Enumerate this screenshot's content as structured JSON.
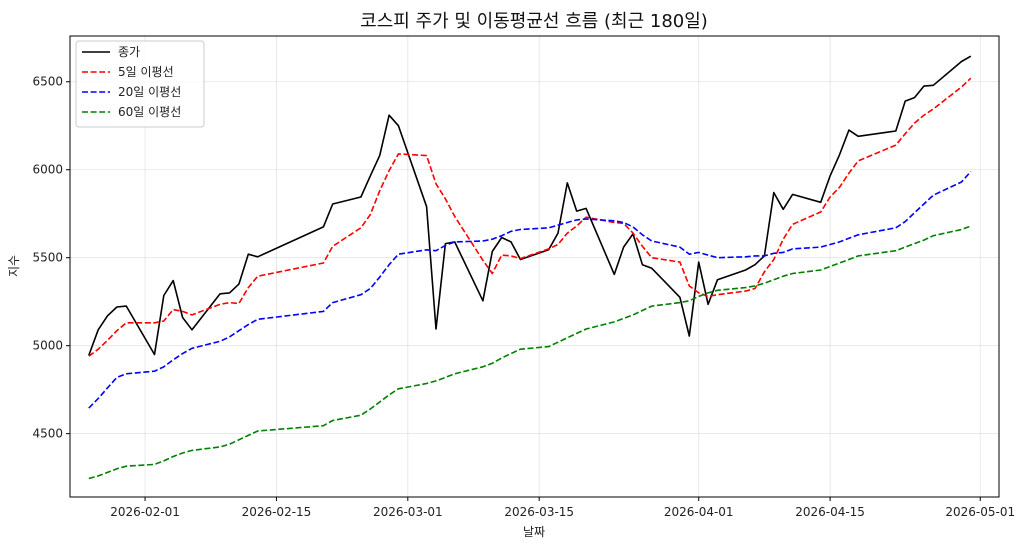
{
  "chart_data": {
    "type": "line",
    "title": "코스피 주가 및 이동평균선 흐름 (최근 180일)",
    "xlabel": "날짜",
    "ylabel": "지수",
    "xlim": [
      "2026-01-24",
      "2026-05-03"
    ],
    "ylim": [
      4140,
      6760
    ],
    "x_ticks": [
      "2026-02-01",
      "2026-02-15",
      "2026-03-01",
      "2026-03-15",
      "2026-04-01",
      "2026-04-15",
      "2026-05-01"
    ],
    "y_ticks": [
      4500,
      5000,
      5500,
      6000,
      6500
    ],
    "grid": true,
    "legend_position": "top-left",
    "series": [
      {
        "name": "종가",
        "color": "#000000",
        "dash": "solid",
        "points": [
          [
            "2026-01-26",
            4945
          ],
          [
            "2026-01-27",
            5090
          ],
          [
            "2026-01-28",
            5170
          ],
          [
            "2026-01-29",
            5220
          ],
          [
            "2026-01-30",
            5225
          ],
          [
            "2026-02-02",
            4950
          ],
          [
            "2026-02-03",
            5285
          ],
          [
            "2026-02-04",
            5370
          ],
          [
            "2026-02-05",
            5160
          ],
          [
            "2026-02-06",
            5090
          ],
          [
            "2026-02-09",
            5295
          ],
          [
            "2026-02-10",
            5300
          ],
          [
            "2026-02-11",
            5350
          ],
          [
            "2026-02-12",
            5520
          ],
          [
            "2026-02-13",
            5505
          ],
          [
            "2026-02-20",
            5675
          ],
          [
            "2026-02-21",
            5805
          ],
          [
            "2026-02-24",
            5845
          ],
          [
            "2026-02-25",
            5965
          ],
          [
            "2026-02-26",
            6080
          ],
          [
            "2026-02-27",
            6310
          ],
          [
            "2026-02-28",
            6250
          ],
          [
            "2026-03-03",
            5790
          ],
          [
            "2026-03-04",
            5095
          ],
          [
            "2026-03-05",
            5580
          ],
          [
            "2026-03-06",
            5590
          ],
          [
            "2026-03-09",
            5255
          ],
          [
            "2026-03-10",
            5535
          ],
          [
            "2026-03-11",
            5615
          ],
          [
            "2026-03-12",
            5590
          ],
          [
            "2026-03-13",
            5490
          ],
          [
            "2026-03-16",
            5545
          ],
          [
            "2026-03-17",
            5640
          ],
          [
            "2026-03-18",
            5925
          ],
          [
            "2026-03-19",
            5765
          ],
          [
            "2026-03-20",
            5780
          ],
          [
            "2026-03-23",
            5405
          ],
          [
            "2026-03-24",
            5560
          ],
          [
            "2026-03-25",
            5635
          ],
          [
            "2026-03-26",
            5460
          ],
          [
            "2026-03-27",
            5440
          ],
          [
            "2026-03-30",
            5275
          ],
          [
            "2026-03-31",
            5055
          ],
          [
            "2026-04-01",
            5475
          ],
          [
            "2026-04-02",
            5235
          ],
          [
            "2026-04-03",
            5375
          ],
          [
            "2026-04-06",
            5430
          ],
          [
            "2026-04-07",
            5460
          ],
          [
            "2026-04-08",
            5510
          ],
          [
            "2026-04-09",
            5870
          ],
          [
            "2026-04-10",
            5775
          ],
          [
            "2026-04-11",
            5860
          ],
          [
            "2026-04-14",
            5815
          ],
          [
            "2026-04-15",
            5965
          ],
          [
            "2026-04-16",
            6085
          ],
          [
            "2026-04-17",
            6225
          ],
          [
            "2026-04-18",
            6190
          ],
          [
            "2026-04-22",
            6220
          ],
          [
            "2026-04-23",
            6390
          ],
          [
            "2026-04-24",
            6410
          ],
          [
            "2026-04-25",
            6475
          ],
          [
            "2026-04-26",
            6480
          ],
          [
            "2026-04-29",
            6615
          ],
          [
            "2026-04-30",
            6645
          ]
        ]
      },
      {
        "name": "5일 이평선",
        "color": "#ff0000",
        "dash": "dashed",
        "points": [
          [
            "2026-01-26",
            4940
          ],
          [
            "2026-01-27",
            4980
          ],
          [
            "2026-01-28",
            5030
          ],
          [
            "2026-01-29",
            5085
          ],
          [
            "2026-01-30",
            5130
          ],
          [
            "2026-02-02",
            5130
          ],
          [
            "2026-02-03",
            5140
          ],
          [
            "2026-02-04",
            5205
          ],
          [
            "2026-02-05",
            5195
          ],
          [
            "2026-02-06",
            5175
          ],
          [
            "2026-02-09",
            5235
          ],
          [
            "2026-02-10",
            5245
          ],
          [
            "2026-02-11",
            5240
          ],
          [
            "2026-02-12",
            5330
          ],
          [
            "2026-02-13",
            5395
          ],
          [
            "2026-02-20",
            5470
          ],
          [
            "2026-02-21",
            5565
          ],
          [
            "2026-02-24",
            5670
          ],
          [
            "2026-02-25",
            5745
          ],
          [
            "2026-02-26",
            5880
          ],
          [
            "2026-02-27",
            5995
          ],
          [
            "2026-02-28",
            6090
          ],
          [
            "2026-03-03",
            6080
          ],
          [
            "2026-03-04",
            5920
          ],
          [
            "2026-03-05",
            5835
          ],
          [
            "2026-03-06",
            5735
          ],
          [
            "2026-03-09",
            5485
          ],
          [
            "2026-03-10",
            5410
          ],
          [
            "2026-03-11",
            5515
          ],
          [
            "2026-03-12",
            5510
          ],
          [
            "2026-03-13",
            5495
          ],
          [
            "2026-03-16",
            5550
          ],
          [
            "2026-03-17",
            5575
          ],
          [
            "2026-03-18",
            5640
          ],
          [
            "2026-03-19",
            5680
          ],
          [
            "2026-03-20",
            5730
          ],
          [
            "2026-03-23",
            5700
          ],
          [
            "2026-03-24",
            5695
          ],
          [
            "2026-03-25",
            5640
          ],
          [
            "2026-03-26",
            5565
          ],
          [
            "2026-03-27",
            5500
          ],
          [
            "2026-03-30",
            5475
          ],
          [
            "2026-03-31",
            5340
          ],
          [
            "2026-04-01",
            5300
          ],
          [
            "2026-04-02",
            5280
          ],
          [
            "2026-04-03",
            5290
          ],
          [
            "2026-04-06",
            5310
          ],
          [
            "2026-04-07",
            5325
          ],
          [
            "2026-04-08",
            5420
          ],
          [
            "2026-04-09",
            5490
          ],
          [
            "2026-04-10",
            5605
          ],
          [
            "2026-04-11",
            5690
          ],
          [
            "2026-04-14",
            5760
          ],
          [
            "2026-04-15",
            5845
          ],
          [
            "2026-04-16",
            5900
          ],
          [
            "2026-04-17",
            5980
          ],
          [
            "2026-04-18",
            6050
          ],
          [
            "2026-04-22",
            6140
          ],
          [
            "2026-04-23",
            6205
          ],
          [
            "2026-04-24",
            6265
          ],
          [
            "2026-04-25",
            6310
          ],
          [
            "2026-04-26",
            6345
          ],
          [
            "2026-04-29",
            6470
          ],
          [
            "2026-04-30",
            6520
          ]
        ]
      },
      {
        "name": "20일 이평선",
        "color": "#0000ff",
        "dash": "dashed",
        "points": [
          [
            "2026-01-26",
            4645
          ],
          [
            "2026-01-27",
            4700
          ],
          [
            "2026-01-28",
            4760
          ],
          [
            "2026-01-29",
            4820
          ],
          [
            "2026-01-30",
            4840
          ],
          [
            "2026-02-02",
            4855
          ],
          [
            "2026-02-03",
            4880
          ],
          [
            "2026-02-04",
            4920
          ],
          [
            "2026-02-05",
            4955
          ],
          [
            "2026-02-06",
            4985
          ],
          [
            "2026-02-09",
            5025
          ],
          [
            "2026-02-10",
            5050
          ],
          [
            "2026-02-11",
            5085
          ],
          [
            "2026-02-12",
            5120
          ],
          [
            "2026-02-13",
            5150
          ],
          [
            "2026-02-20",
            5195
          ],
          [
            "2026-02-21",
            5245
          ],
          [
            "2026-02-24",
            5290
          ],
          [
            "2026-02-25",
            5325
          ],
          [
            "2026-02-26",
            5390
          ],
          [
            "2026-02-27",
            5460
          ],
          [
            "2026-02-28",
            5520
          ],
          [
            "2026-03-03",
            5545
          ],
          [
            "2026-03-04",
            5540
          ],
          [
            "2026-03-05",
            5570
          ],
          [
            "2026-03-06",
            5590
          ],
          [
            "2026-03-09",
            5595
          ],
          [
            "2026-03-10",
            5605
          ],
          [
            "2026-03-11",
            5625
          ],
          [
            "2026-03-12",
            5650
          ],
          [
            "2026-03-13",
            5660
          ],
          [
            "2026-03-16",
            5670
          ],
          [
            "2026-03-17",
            5685
          ],
          [
            "2026-03-18",
            5700
          ],
          [
            "2026-03-19",
            5715
          ],
          [
            "2026-03-20",
            5720
          ],
          [
            "2026-03-23",
            5710
          ],
          [
            "2026-03-24",
            5700
          ],
          [
            "2026-03-25",
            5675
          ],
          [
            "2026-03-26",
            5630
          ],
          [
            "2026-03-27",
            5595
          ],
          [
            "2026-03-30",
            5560
          ],
          [
            "2026-03-31",
            5520
          ],
          [
            "2026-04-01",
            5530
          ],
          [
            "2026-04-02",
            5515
          ],
          [
            "2026-04-03",
            5500
          ],
          [
            "2026-04-06",
            5505
          ],
          [
            "2026-04-07",
            5510
          ],
          [
            "2026-04-08",
            5510
          ],
          [
            "2026-04-09",
            5525
          ],
          [
            "2026-04-10",
            5530
          ],
          [
            "2026-04-11",
            5550
          ],
          [
            "2026-04-14",
            5560
          ],
          [
            "2026-04-15",
            5575
          ],
          [
            "2026-04-16",
            5590
          ],
          [
            "2026-04-17",
            5610
          ],
          [
            "2026-04-18",
            5630
          ],
          [
            "2026-04-22",
            5670
          ],
          [
            "2026-04-23",
            5705
          ],
          [
            "2026-04-24",
            5755
          ],
          [
            "2026-04-25",
            5805
          ],
          [
            "2026-04-26",
            5855
          ],
          [
            "2026-04-29",
            5930
          ],
          [
            "2026-04-30",
            5990
          ]
        ]
      },
      {
        "name": "60일 이평선",
        "color": "#008000",
        "dash": "dashed",
        "points": [
          [
            "2026-01-26",
            4245
          ],
          [
            "2026-01-27",
            4260
          ],
          [
            "2026-01-28",
            4280
          ],
          [
            "2026-01-29",
            4300
          ],
          [
            "2026-01-30",
            4315
          ],
          [
            "2026-02-02",
            4325
          ],
          [
            "2026-02-03",
            4345
          ],
          [
            "2026-02-04",
            4370
          ],
          [
            "2026-02-05",
            4390
          ],
          [
            "2026-02-06",
            4405
          ],
          [
            "2026-02-09",
            4425
          ],
          [
            "2026-02-10",
            4440
          ],
          [
            "2026-02-11",
            4465
          ],
          [
            "2026-02-12",
            4490
          ],
          [
            "2026-02-13",
            4515
          ],
          [
            "2026-02-20",
            4545
          ],
          [
            "2026-02-21",
            4575
          ],
          [
            "2026-02-24",
            4605
          ],
          [
            "2026-02-25",
            4640
          ],
          [
            "2026-02-26",
            4680
          ],
          [
            "2026-02-27",
            4720
          ],
          [
            "2026-02-28",
            4755
          ],
          [
            "2026-03-03",
            4785
          ],
          [
            "2026-03-04",
            4800
          ],
          [
            "2026-03-05",
            4820
          ],
          [
            "2026-03-06",
            4840
          ],
          [
            "2026-03-09",
            4880
          ],
          [
            "2026-03-10",
            4900
          ],
          [
            "2026-03-11",
            4930
          ],
          [
            "2026-03-12",
            4955
          ],
          [
            "2026-03-13",
            4980
          ],
          [
            "2026-03-16",
            4995
          ],
          [
            "2026-03-17",
            5020
          ],
          [
            "2026-03-18",
            5045
          ],
          [
            "2026-03-19",
            5070
          ],
          [
            "2026-03-20",
            5095
          ],
          [
            "2026-03-23",
            5135
          ],
          [
            "2026-03-24",
            5155
          ],
          [
            "2026-03-25",
            5175
          ],
          [
            "2026-03-26",
            5200
          ],
          [
            "2026-03-27",
            5225
          ],
          [
            "2026-03-30",
            5245
          ],
          [
            "2026-03-31",
            5255
          ],
          [
            "2026-04-01",
            5280
          ],
          [
            "2026-04-02",
            5300
          ],
          [
            "2026-04-03",
            5315
          ],
          [
            "2026-04-06",
            5330
          ],
          [
            "2026-04-07",
            5340
          ],
          [
            "2026-04-08",
            5355
          ],
          [
            "2026-04-09",
            5375
          ],
          [
            "2026-04-10",
            5395
          ],
          [
            "2026-04-11",
            5410
          ],
          [
            "2026-04-14",
            5430
          ],
          [
            "2026-04-15",
            5450
          ],
          [
            "2026-04-16",
            5470
          ],
          [
            "2026-04-17",
            5490
          ],
          [
            "2026-04-18",
            5510
          ],
          [
            "2026-04-22",
            5540
          ],
          [
            "2026-04-23",
            5560
          ],
          [
            "2026-04-24",
            5580
          ],
          [
            "2026-04-25",
            5600
          ],
          [
            "2026-04-26",
            5625
          ],
          [
            "2026-04-29",
            5660
          ],
          [
            "2026-04-30",
            5680
          ]
        ]
      }
    ]
  }
}
